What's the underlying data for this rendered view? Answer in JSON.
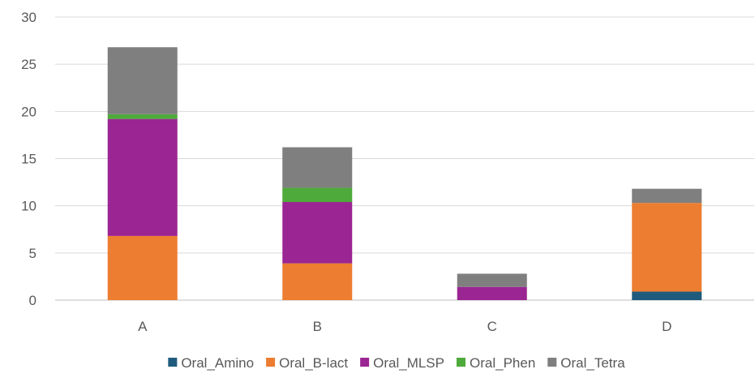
{
  "chart_data": {
    "type": "bar",
    "stacked": true,
    "title": "",
    "xlabel": "",
    "ylabel": "",
    "categories": [
      "A",
      "B",
      "C",
      "D"
    ],
    "ylim": [
      0,
      30
    ],
    "yticks": [
      0,
      5,
      10,
      15,
      20,
      25,
      30
    ],
    "grid": true,
    "legend_position": "bottom",
    "series": [
      {
        "name": "Oral_Amino",
        "color": "#1f5b7d",
        "values": [
          0,
          0,
          0,
          0.9
        ]
      },
      {
        "name": "Oral_B-lact",
        "color": "#ed7d31",
        "values": [
          6.8,
          3.9,
          0,
          9.4
        ]
      },
      {
        "name": "Oral_MLSP",
        "color": "#9b2592",
        "values": [
          12.4,
          6.5,
          1.4,
          0
        ]
      },
      {
        "name": "Oral_Phen",
        "color": "#4eaa3a",
        "values": [
          0.5,
          1.5,
          0,
          0
        ]
      },
      {
        "name": "Oral_Tetra",
        "color": "#7f7f7f",
        "values": [
          7.1,
          4.3,
          1.4,
          1.5
        ]
      }
    ]
  }
}
